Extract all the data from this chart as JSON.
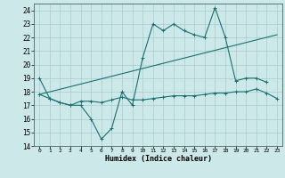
{
  "title": "",
  "xlabel": "Humidex (Indice chaleur)",
  "bg_color": "#cce8e8",
  "grid_color": "#aacccc",
  "line_color": "#1a7070",
  "xlim": [
    -0.5,
    23.5
  ],
  "ylim": [
    14,
    24.5
  ],
  "yticks": [
    14,
    15,
    16,
    17,
    18,
    19,
    20,
    21,
    22,
    23,
    24
  ],
  "xticks": [
    0,
    1,
    2,
    3,
    4,
    5,
    6,
    7,
    8,
    9,
    10,
    11,
    12,
    13,
    14,
    15,
    16,
    17,
    18,
    19,
    20,
    21,
    22,
    23
  ],
  "line1_x": [
    0,
    1,
    2,
    3,
    4,
    5,
    6,
    7,
    8,
    9,
    10,
    11,
    12,
    13,
    14,
    15,
    16,
    17,
    18,
    19,
    20,
    21,
    22
  ],
  "line1_y": [
    19.0,
    17.5,
    17.2,
    17.0,
    17.0,
    16.0,
    14.5,
    15.3,
    18.0,
    17.0,
    20.5,
    23.0,
    22.5,
    23.0,
    22.5,
    22.2,
    22.0,
    24.2,
    22.0,
    18.8,
    19.0,
    19.0,
    18.7
  ],
  "line2_x": [
    0,
    1,
    2,
    3,
    4,
    5,
    6,
    7,
    8,
    9,
    10,
    11,
    12,
    13,
    14,
    15,
    16,
    17,
    18,
    19,
    20,
    21,
    22,
    23
  ],
  "line2_y": [
    17.8,
    17.5,
    17.2,
    17.0,
    17.3,
    17.3,
    17.2,
    17.4,
    17.6,
    17.4,
    17.4,
    17.5,
    17.6,
    17.7,
    17.7,
    17.7,
    17.8,
    17.9,
    17.9,
    18.0,
    18.0,
    18.2,
    17.9,
    17.5
  ],
  "line3_x": [
    0,
    23
  ],
  "line3_y": [
    17.8,
    22.2
  ]
}
